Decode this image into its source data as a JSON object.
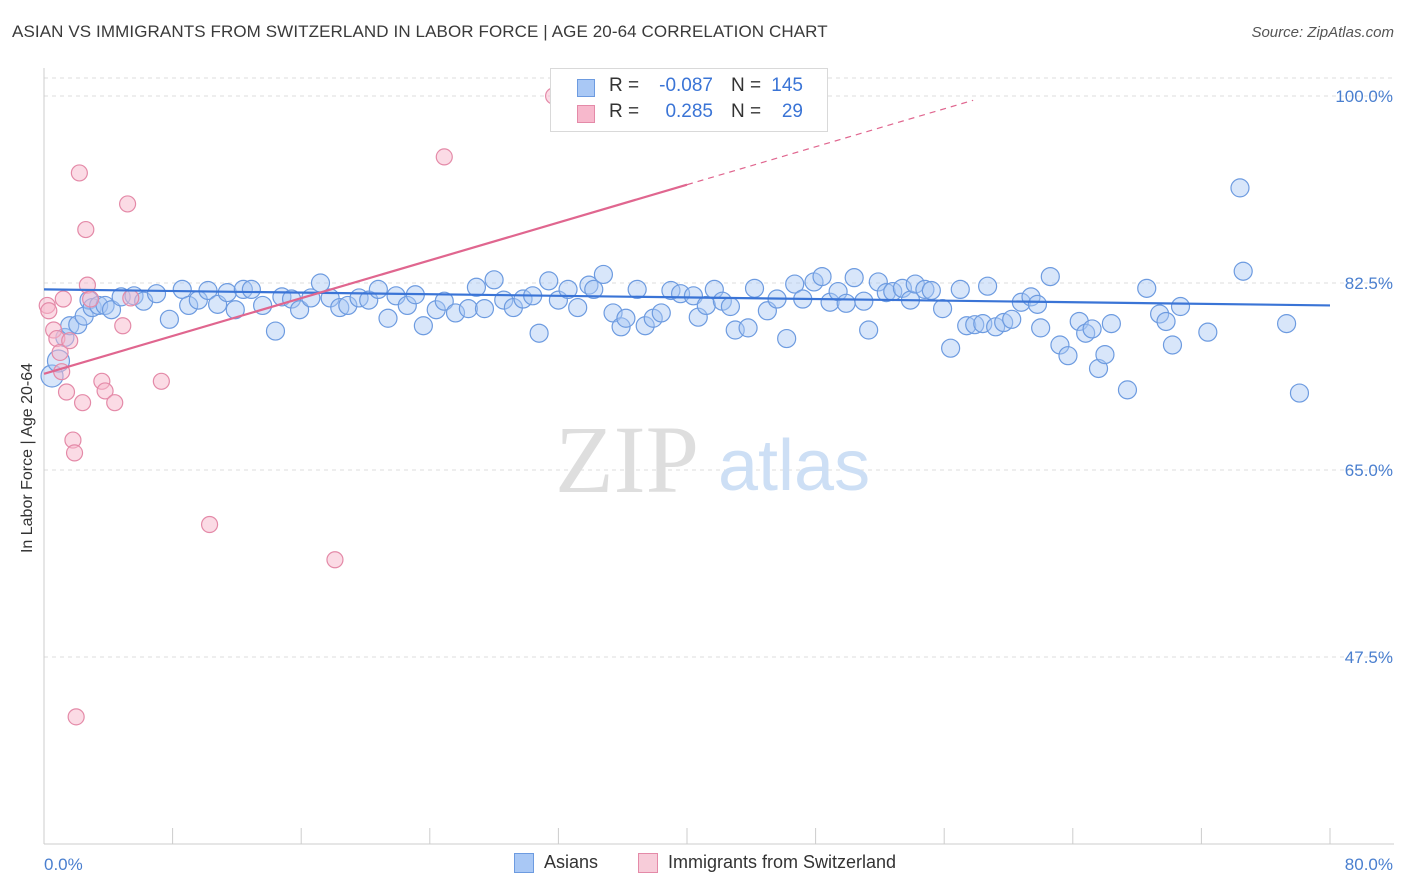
{
  "title": "ASIAN VS IMMIGRANTS FROM SWITZERLAND IN LABOR FORCE | AGE 20-64 CORRELATION CHART",
  "source": "Source: ZipAtlas.com",
  "watermark": {
    "zip": "ZIP",
    "atlas": "atlas"
  },
  "legend": {
    "rows": [
      {
        "r_label": "R =",
        "r_value": "-0.087",
        "n_label": "N =",
        "n_value": "145",
        "color": "#a9c8f5"
      },
      {
        "r_label": "R =",
        "r_value": "0.285",
        "n_label": "N =",
        "n_value": "29",
        "color": "#f7b8cc"
      }
    ]
  },
  "bottom_legend": {
    "asians": "Asians",
    "swiss": "Immigrants from Switzerland"
  },
  "colors": {
    "blue": "#3a74d6",
    "blue_fill": "#a9c8f5",
    "pink": "#e0668f",
    "pink_fill": "#f7b8cc",
    "grid": "#dddddd",
    "tick": "#4a7fcf"
  },
  "chart_data": {
    "type": "scatter",
    "title": "ASIAN VS IMMIGRANTS FROM SWITZERLAND IN LABOR FORCE | AGE 20-64 CORRELATION CHART",
    "xlabel": "",
    "ylabel": "In Labor Force | Age 20-64",
    "xlim": [
      0,
      80
    ],
    "ylim": [
      30,
      102.5
    ],
    "x_tick_labels": [
      "0.0%",
      "80.0%"
    ],
    "y_ticks": [
      47.5,
      65.0,
      82.5,
      100.0
    ],
    "y_tick_labels": [
      "47.5%",
      "65.0%",
      "82.5%",
      "100.0%"
    ],
    "series": [
      {
        "name": "Asians",
        "trend": {
          "x": [
            0,
            80
          ],
          "y": [
            81.9,
            80.4
          ]
        },
        "points": [
          [
            0.5,
            73.8
          ],
          [
            0.9,
            75.2
          ],
          [
            1.3,
            77.4
          ],
          [
            1.6,
            78.5
          ],
          [
            2.1,
            78.6
          ],
          [
            2.5,
            79.4
          ],
          [
            2.8,
            80.9
          ],
          [
            3.0,
            80.2
          ],
          [
            3.4,
            80.4
          ],
          [
            3.8,
            80.4
          ],
          [
            4.2,
            80.0
          ],
          [
            4.8,
            81.2
          ],
          [
            5.6,
            81.3
          ],
          [
            6.2,
            80.8
          ],
          [
            7.0,
            81.5
          ],
          [
            7.8,
            79.1
          ],
          [
            8.6,
            81.9
          ],
          [
            9.0,
            80.4
          ],
          [
            9.6,
            80.9
          ],
          [
            10.2,
            81.8
          ],
          [
            10.8,
            80.5
          ],
          [
            11.4,
            81.6
          ],
          [
            11.9,
            80.0
          ],
          [
            12.4,
            81.9
          ],
          [
            12.9,
            81.9
          ],
          [
            13.6,
            80.4
          ],
          [
            14.4,
            78.0
          ],
          [
            14.8,
            81.2
          ],
          [
            15.4,
            81.0
          ],
          [
            15.9,
            80.0
          ],
          [
            16.6,
            81.1
          ],
          [
            17.2,
            82.5
          ],
          [
            17.8,
            81.1
          ],
          [
            18.4,
            80.2
          ],
          [
            18.9,
            80.4
          ],
          [
            19.6,
            81.1
          ],
          [
            20.2,
            80.9
          ],
          [
            20.8,
            81.9
          ],
          [
            21.4,
            79.2
          ],
          [
            21.9,
            81.3
          ],
          [
            22.6,
            80.4
          ],
          [
            23.1,
            81.4
          ],
          [
            23.6,
            78.5
          ],
          [
            24.4,
            80.0
          ],
          [
            24.9,
            80.8
          ],
          [
            25.6,
            79.7
          ],
          [
            26.4,
            80.1
          ],
          [
            26.9,
            82.1
          ],
          [
            27.4,
            80.1
          ],
          [
            28.0,
            82.8
          ],
          [
            28.6,
            80.9
          ],
          [
            29.2,
            80.2
          ],
          [
            29.8,
            81.0
          ],
          [
            30.4,
            81.3
          ],
          [
            30.8,
            77.8
          ],
          [
            31.4,
            82.7
          ],
          [
            32.0,
            80.9
          ],
          [
            32.6,
            81.9
          ],
          [
            33.2,
            80.2
          ],
          [
            33.9,
            82.3
          ],
          [
            34.2,
            81.9
          ],
          [
            34.8,
            83.3
          ],
          [
            35.4,
            79.7
          ],
          [
            35.9,
            78.4
          ],
          [
            36.2,
            79.2
          ],
          [
            36.9,
            81.9
          ],
          [
            37.4,
            78.5
          ],
          [
            37.9,
            79.2
          ],
          [
            38.4,
            79.7
          ],
          [
            39.0,
            81.8
          ],
          [
            39.6,
            81.5
          ],
          [
            40.4,
            81.3
          ],
          [
            40.7,
            79.3
          ],
          [
            41.2,
            80.4
          ],
          [
            41.7,
            81.9
          ],
          [
            42.2,
            80.8
          ],
          [
            42.7,
            80.3
          ],
          [
            43.0,
            78.1
          ],
          [
            43.8,
            78.3
          ],
          [
            44.2,
            82.0
          ],
          [
            45.0,
            79.9
          ],
          [
            45.6,
            81.0
          ],
          [
            46.2,
            77.3
          ],
          [
            46.7,
            82.4
          ],
          [
            47.2,
            81.0
          ],
          [
            47.9,
            82.6
          ],
          [
            48.4,
            83.1
          ],
          [
            48.9,
            80.7
          ],
          [
            49.4,
            81.7
          ],
          [
            49.9,
            80.6
          ],
          [
            50.4,
            83.0
          ],
          [
            51.0,
            80.8
          ],
          [
            51.3,
            78.1
          ],
          [
            51.9,
            82.6
          ],
          [
            52.4,
            81.6
          ],
          [
            52.8,
            81.7
          ],
          [
            53.4,
            82.0
          ],
          [
            53.9,
            80.9
          ],
          [
            54.2,
            82.4
          ],
          [
            54.8,
            81.9
          ],
          [
            55.2,
            81.8
          ],
          [
            55.9,
            80.1
          ],
          [
            56.4,
            76.4
          ],
          [
            57.0,
            81.9
          ],
          [
            57.4,
            78.5
          ],
          [
            57.9,
            78.6
          ],
          [
            58.4,
            78.7
          ],
          [
            58.7,
            82.2
          ],
          [
            59.2,
            78.4
          ],
          [
            59.7,
            78.8
          ],
          [
            60.2,
            79.1
          ],
          [
            60.8,
            80.7
          ],
          [
            61.4,
            81.2
          ],
          [
            61.8,
            80.5
          ],
          [
            62.0,
            78.3
          ],
          [
            62.6,
            83.1
          ],
          [
            63.2,
            76.7
          ],
          [
            63.7,
            75.7
          ],
          [
            64.4,
            78.9
          ],
          [
            64.8,
            77.8
          ],
          [
            65.2,
            78.2
          ],
          [
            65.6,
            74.5
          ],
          [
            66.0,
            75.8
          ],
          [
            66.4,
            78.7
          ],
          [
            67.4,
            72.5
          ],
          [
            68.6,
            82.0
          ],
          [
            69.4,
            79.6
          ],
          [
            69.8,
            78.9
          ],
          [
            70.2,
            76.7
          ],
          [
            70.7,
            80.3
          ],
          [
            72.4,
            77.9
          ],
          [
            74.4,
            91.4
          ],
          [
            74.6,
            83.6
          ],
          [
            77.3,
            78.7
          ],
          [
            78.1,
            72.2
          ]
        ]
      },
      {
        "name": "Immigrants from Switzerland",
        "trend": {
          "x": [
            0,
            40
          ],
          "y": [
            74.0,
            91.7
          ]
        },
        "trend_dashed": {
          "x": [
            40,
            57.8
          ],
          "y": [
            91.7,
            99.6
          ]
        },
        "points": [
          [
            0.2,
            80.4
          ],
          [
            0.3,
            79.9
          ],
          [
            0.6,
            78.1
          ],
          [
            0.8,
            77.3
          ],
          [
            1.0,
            76.0
          ],
          [
            1.1,
            74.2
          ],
          [
            1.2,
            81.0
          ],
          [
            1.4,
            72.3
          ],
          [
            1.6,
            77.1
          ],
          [
            1.8,
            67.8
          ],
          [
            1.9,
            66.6
          ],
          [
            2.0,
            41.9
          ],
          [
            2.2,
            92.8
          ],
          [
            2.4,
            71.3
          ],
          [
            2.6,
            87.5
          ],
          [
            2.7,
            82.3
          ],
          [
            2.9,
            81.0
          ],
          [
            3.6,
            73.3
          ],
          [
            3.8,
            72.4
          ],
          [
            4.4,
            71.3
          ],
          [
            4.9,
            78.5
          ],
          [
            5.2,
            89.9
          ],
          [
            5.4,
            81.1
          ],
          [
            7.3,
            73.3
          ],
          [
            10.3,
            59.9
          ],
          [
            18.1,
            56.6
          ],
          [
            24.9,
            94.3
          ],
          [
            31.7,
            100.0
          ]
        ]
      }
    ]
  }
}
